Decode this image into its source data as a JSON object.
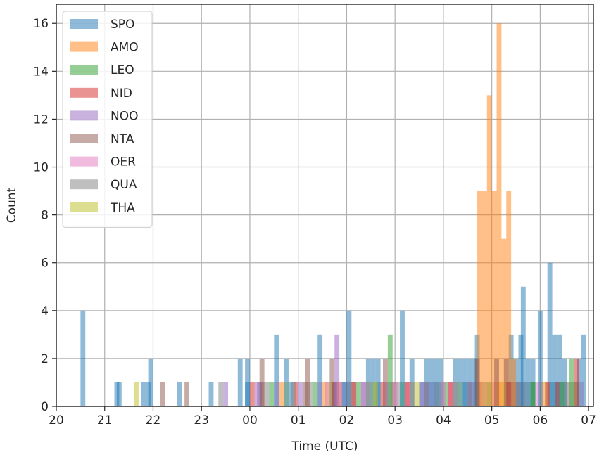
{
  "chart_data": {
    "type": "bar",
    "subtype": "histogram",
    "title": "",
    "xlabel": "Time (UTC)",
    "ylabel": "Count",
    "x_unit": "hours since 20:00 UTC",
    "xlim": [
      0,
      11.1
    ],
    "ylim": [
      0,
      16.8
    ],
    "bin_width": 0.1,
    "grid": true,
    "legend_position": "top-left",
    "x_ticks": [
      {
        "x": 0,
        "label": "20"
      },
      {
        "x": 1,
        "label": "21"
      },
      {
        "x": 2,
        "label": "22"
      },
      {
        "x": 3,
        "label": "23"
      },
      {
        "x": 4,
        "label": "00"
      },
      {
        "x": 5,
        "label": "01"
      },
      {
        "x": 6,
        "label": "02"
      },
      {
        "x": 7,
        "label": "03"
      },
      {
        "x": 8,
        "label": "04"
      },
      {
        "x": 9,
        "label": "05"
      },
      {
        "x": 10,
        "label": "06"
      },
      {
        "x": 11,
        "label": "07"
      }
    ],
    "y_ticks": [
      {
        "y": 0,
        "label": "0"
      },
      {
        "y": 2,
        "label": "2"
      },
      {
        "y": 4,
        "label": "4"
      },
      {
        "y": 6,
        "label": "6"
      },
      {
        "y": 8,
        "label": "8"
      },
      {
        "y": 10,
        "label": "10"
      },
      {
        "y": 12,
        "label": "12"
      },
      {
        "y": 14,
        "label": "14"
      },
      {
        "y": 16,
        "label": "16"
      }
    ],
    "series": [
      {
        "name": "SPO",
        "color": "#1f77b4",
        "bins": [
          [
            0.5,
            4
          ],
          [
            1.2,
            1
          ],
          [
            1.25,
            1
          ],
          [
            1.75,
            1
          ],
          [
            1.85,
            1
          ],
          [
            1.9,
            2
          ],
          [
            2.5,
            1
          ],
          [
            3.15,
            1
          ],
          [
            3.75,
            2
          ],
          [
            3.9,
            2
          ],
          [
            4.5,
            3
          ],
          [
            4.7,
            2
          ],
          [
            5.4,
            3
          ],
          [
            5.9,
            1
          ],
          [
            6.0,
            4
          ],
          [
            6.4,
            2
          ],
          [
            6.5,
            2
          ],
          [
            6.6,
            2
          ],
          [
            7.1,
            4
          ],
          [
            7.3,
            2
          ],
          [
            7.6,
            2
          ],
          [
            7.7,
            2
          ],
          [
            7.8,
            2
          ],
          [
            7.9,
            2
          ],
          [
            8.2,
            2
          ],
          [
            8.3,
            2
          ],
          [
            8.4,
            2
          ],
          [
            8.5,
            2
          ],
          [
            8.6,
            2
          ],
          [
            8.65,
            3
          ],
          [
            9.35,
            3
          ],
          [
            9.45,
            2
          ],
          [
            9.55,
            3
          ],
          [
            9.6,
            5
          ],
          [
            9.7,
            2
          ],
          [
            9.8,
            2
          ],
          [
            9.95,
            4
          ],
          [
            10.15,
            6
          ],
          [
            10.25,
            3
          ],
          [
            10.35,
            3
          ],
          [
            10.45,
            2
          ],
          [
            10.75,
            2
          ],
          [
            10.85,
            3
          ]
        ]
      },
      {
        "name": "AMO",
        "color": "#ff7f0e",
        "bins": [
          [
            8.7,
            9
          ],
          [
            8.8,
            9
          ],
          [
            8.9,
            13
          ],
          [
            9.0,
            9
          ],
          [
            9.1,
            16
          ],
          [
            9.2,
            7
          ],
          [
            9.3,
            9
          ],
          [
            9.4,
            2
          ]
        ]
      },
      {
        "name": "LEO",
        "color": "#2ca02c",
        "bins": [
          [
            6.85,
            3
          ],
          [
            9.8,
            1
          ],
          [
            10.4,
            1
          ],
          [
            10.6,
            2
          ]
        ]
      },
      {
        "name": "NID",
        "color": "#d62728",
        "bins": [
          [
            5.7,
            1
          ],
          [
            6.1,
            1
          ],
          [
            7.2,
            1
          ],
          [
            8.1,
            1
          ],
          [
            9.3,
            1
          ],
          [
            10.1,
            1
          ],
          [
            10.7,
            2
          ]
        ]
      },
      {
        "name": "NOO",
        "color": "#9467bd",
        "bins": [
          [
            3.45,
            1
          ],
          [
            4.15,
            1
          ],
          [
            5.75,
            3
          ],
          [
            6.3,
            1
          ],
          [
            7.5,
            1
          ]
        ]
      },
      {
        "name": "NTA",
        "color": "#8c564b",
        "bins": [
          [
            2.15,
            1
          ],
          [
            2.65,
            1
          ],
          [
            4.2,
            2
          ],
          [
            5.15,
            2
          ],
          [
            5.65,
            2
          ],
          [
            6.75,
            2
          ],
          [
            8.65,
            2
          ],
          [
            9.05,
            2
          ],
          [
            9.25,
            2
          ],
          [
            10.3,
            1
          ]
        ]
      },
      {
        "name": "OER",
        "color": "#e377c2",
        "bins": [
          [
            5.55,
            1
          ],
          [
            6.95,
            1
          ],
          [
            7.95,
            1
          ]
        ]
      },
      {
        "name": "QUA",
        "color": "#7f7f7f",
        "bins": [
          [
            3.35,
            1
          ],
          [
            4.85,
            1
          ],
          [
            9.5,
            1
          ]
        ]
      },
      {
        "name": "THA",
        "color": "#bcbd22",
        "bins": [
          [
            1.6,
            1
          ],
          [
            6.55,
            1
          ]
        ]
      }
    ],
    "background_bins": [
      {
        "from": 3.9,
        "to": 10.9,
        "value": 1,
        "note": "dense overlapping 1-count bins from many classes"
      }
    ]
  }
}
